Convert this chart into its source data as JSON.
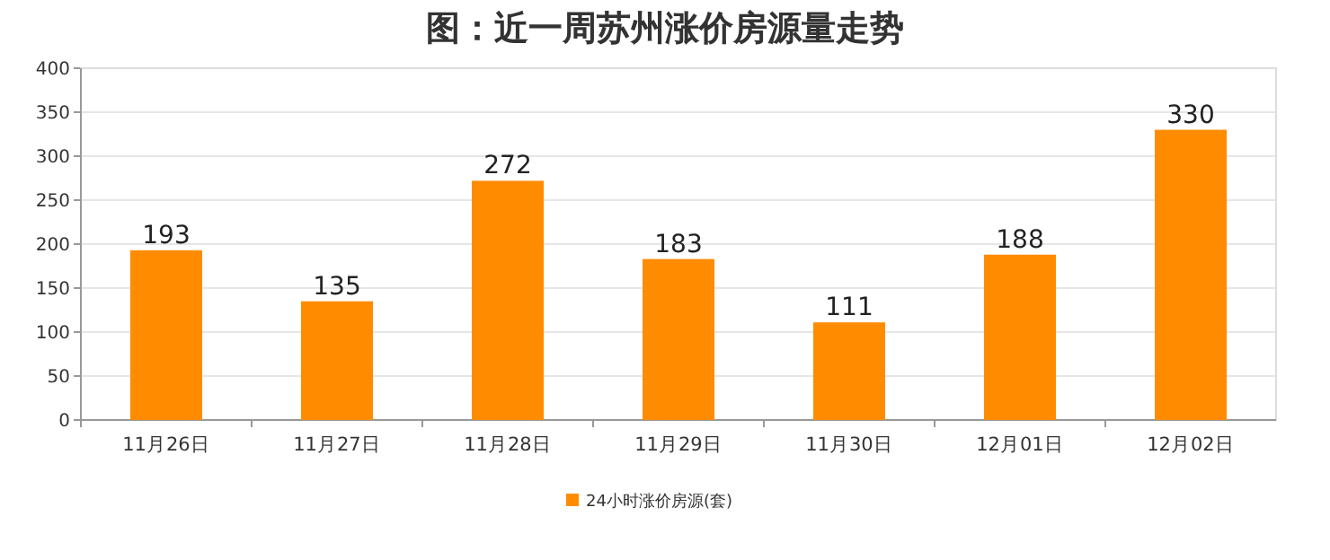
{
  "chart_data": {
    "type": "bar",
    "title": "图：近一周苏州涨价房源量走势",
    "categories": [
      "11月26日",
      "11月27日",
      "11月28日",
      "11月29日",
      "11月30日",
      "12月01日",
      "12月02日"
    ],
    "series": [
      {
        "name": "24小时涨价房源(套)",
        "color": "#ff8c00",
        "values": [
          193,
          135,
          272,
          183,
          111,
          188,
          330
        ]
      }
    ],
    "ylim": [
      0,
      400
    ],
    "yticks": [
      0,
      50,
      100,
      150,
      200,
      250,
      300,
      350,
      400
    ],
    "grid": "y",
    "legend": "bottom",
    "data_labels": true
  }
}
